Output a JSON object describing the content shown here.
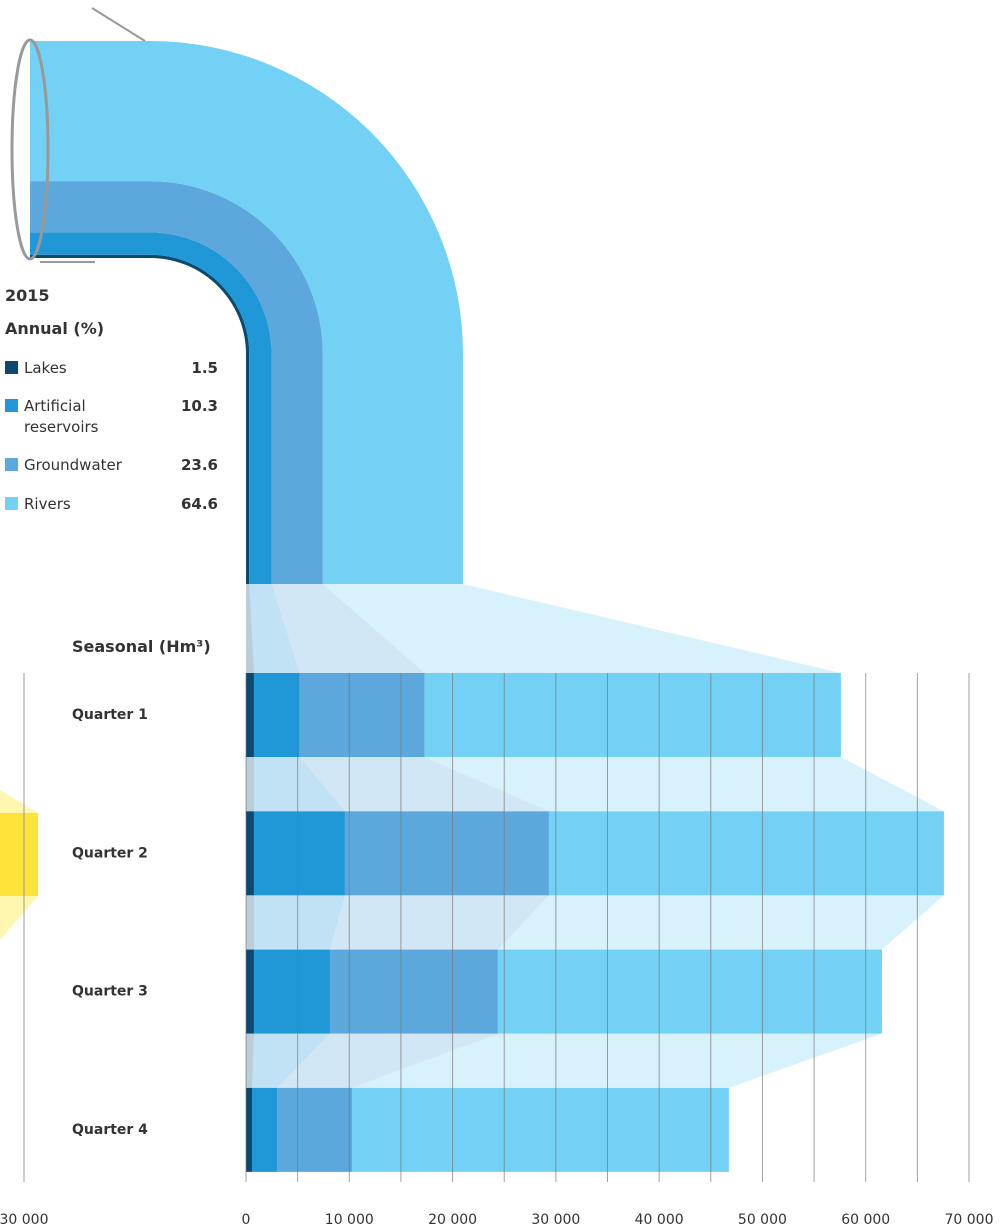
{
  "chart_data": [
    {
      "type": "pipe",
      "title": "2015",
      "subtitle": "Annual (%)",
      "categories": [
        "Lakes",
        "Artificial reservoirs",
        "Groundwater",
        "Rivers"
      ],
      "values": [
        1.5,
        10.3,
        23.6,
        64.6
      ],
      "colors": [
        "#0b4a6e",
        "#2097d6",
        "#5ca8dc",
        "#72d1f5"
      ]
    },
    {
      "type": "bar",
      "orientation": "horizontal",
      "stacked": true,
      "title": "Seasonal (Hm³)",
      "categories": [
        "Quarter 1",
        "Quarter 2",
        "Quarter 3",
        "Quarter 4"
      ],
      "series": [
        {
          "color": "#0b4a6e",
          "values": [
            770,
            770,
            770,
            580
          ]
        },
        {
          "color": "#2097d6",
          "values": [
            4430,
            8810,
            7360,
            2420
          ]
        },
        {
          "color": "#5ca8dc",
          "values": [
            12100,
            19750,
            16260,
            7260
          ]
        },
        {
          "color": "#72d1f5",
          "values": [
            40300,
            38240,
            37180,
            36490
          ]
        }
      ],
      "xlim": [
        0,
        70000
      ],
      "xticks": [
        0,
        {
          "value": 10000,
          "label": "10 000"
        },
        {
          "value": 20000,
          "label": "20 000"
        },
        {
          "value": 30000,
          "label": "30 000"
        },
        {
          "value": 40000,
          "label": "40 000"
        },
        {
          "value": 50000,
          "label": "50 000"
        },
        {
          "value": 60000,
          "label": "60 000"
        },
        {
          "value": 70000,
          "label": "70 000"
        }
      ],
      "xgrid_minor": [
        5000,
        15000,
        25000,
        35000,
        45000,
        55000,
        65000
      ],
      "grid": true,
      "fragment_axis_label": "30 000"
    }
  ]
}
